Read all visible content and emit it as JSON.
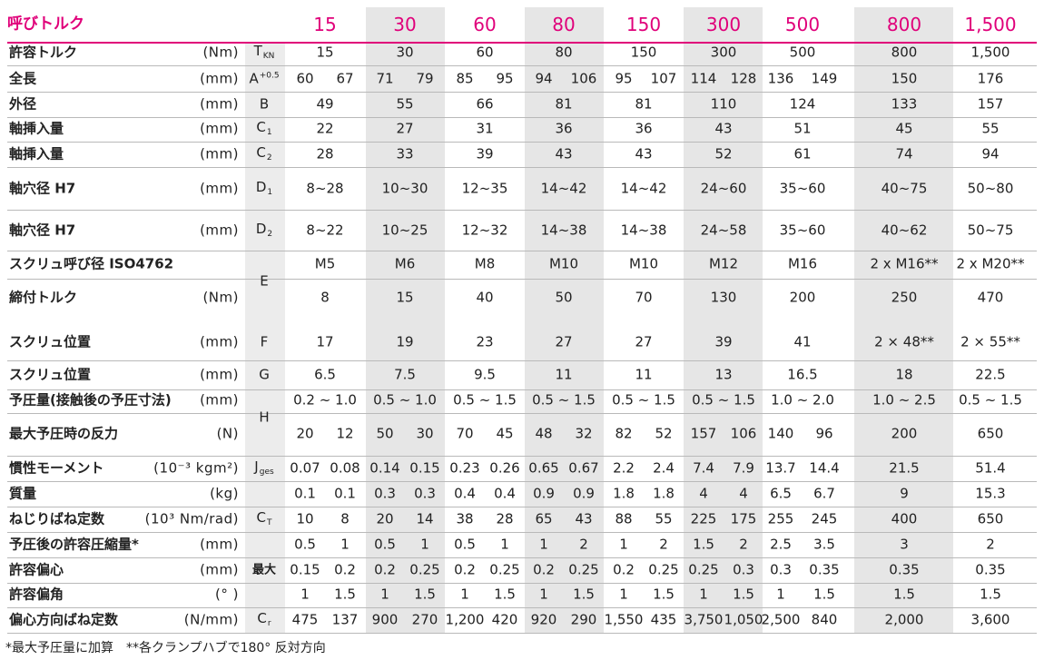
{
  "header": {
    "label": "呼びトルク",
    "sizes": [
      "15",
      "30",
      "60",
      "80",
      "150",
      "300",
      "500",
      "800",
      "1,500"
    ]
  },
  "rows": [
    {
      "label": "許容トルク",
      "unit": "(Nm)",
      "sym": "T",
      "sub": "KN",
      "values": [
        [
          "15"
        ],
        [
          "30"
        ],
        [
          "60"
        ],
        [
          "80"
        ],
        [
          "150"
        ],
        [
          "300"
        ],
        [
          "500"
        ],
        [
          "800"
        ],
        [
          "1,500"
        ]
      ]
    },
    {
      "label": "全長",
      "unit": "(mm)",
      "sym": "A",
      "sup": "+0.5",
      "values": [
        [
          "60",
          "67"
        ],
        [
          "71",
          "79"
        ],
        [
          "85",
          "95"
        ],
        [
          "94",
          "106"
        ],
        [
          "95",
          "107"
        ],
        [
          "114",
          "128"
        ],
        [
          "136",
          "149"
        ],
        [
          "150"
        ],
        [
          "176"
        ]
      ]
    },
    {
      "label": "外径",
      "unit": "(mm)",
      "sym": "B",
      "values": [
        [
          "49"
        ],
        [
          "55"
        ],
        [
          "66"
        ],
        [
          "81"
        ],
        [
          "81"
        ],
        [
          "110"
        ],
        [
          "124"
        ],
        [
          "133"
        ],
        [
          "157"
        ]
      ]
    },
    {
      "label": "軸挿入量",
      "unit": "(mm)",
      "sym": "C",
      "sub": "1",
      "values": [
        [
          "22"
        ],
        [
          "27"
        ],
        [
          "31"
        ],
        [
          "36"
        ],
        [
          "36"
        ],
        [
          "43"
        ],
        [
          "51"
        ],
        [
          "45"
        ],
        [
          "55"
        ]
      ]
    },
    {
      "label": "軸挿入量",
      "unit": "(mm)",
      "sym": "C",
      "sub": "2",
      "values": [
        [
          "28"
        ],
        [
          "33"
        ],
        [
          "39"
        ],
        [
          "43"
        ],
        [
          "43"
        ],
        [
          "52"
        ],
        [
          "61"
        ],
        [
          "74"
        ],
        [
          "94"
        ]
      ]
    },
    {
      "label": "軸穴径 H7",
      "unit": "(mm)",
      "sym": "D",
      "sub": "1",
      "values": [
        [
          "8~28"
        ],
        [
          "10~30"
        ],
        [
          "12~35"
        ],
        [
          "14~42"
        ],
        [
          "14~42"
        ],
        [
          "24~60"
        ],
        [
          "35~60"
        ],
        [
          "40~75"
        ],
        [
          "50~80"
        ]
      ]
    },
    {
      "label": "軸穴径 H7",
      "unit": "(mm)",
      "sym": "D",
      "sub": "2",
      "values": [
        [
          "8~22"
        ],
        [
          "10~25"
        ],
        [
          "12~32"
        ],
        [
          "14~38"
        ],
        [
          "14~38"
        ],
        [
          "24~58"
        ],
        [
          "35~60"
        ],
        [
          "40~62"
        ],
        [
          "50~75"
        ]
      ]
    },
    {
      "label": "スクリュ呼び径 ISO4762",
      "unit": "",
      "sym": "",
      "values": [
        [
          "M5"
        ],
        [
          "M6"
        ],
        [
          "M8"
        ],
        [
          "M10"
        ],
        [
          "M10"
        ],
        [
          "M12"
        ],
        [
          "M16"
        ],
        [
          "2 x M16**"
        ],
        [
          "2 x M20**"
        ]
      ]
    },
    {
      "label": "締付トルク",
      "unit": "(Nm)",
      "sym": "",
      "values": [
        [
          "8"
        ],
        [
          "15"
        ],
        [
          "40"
        ],
        [
          "50"
        ],
        [
          "70"
        ],
        [
          "130"
        ],
        [
          "200"
        ],
        [
          "250"
        ],
        [
          "470"
        ]
      ]
    },
    {
      "label": "スクリュ位置",
      "unit": "(mm)",
      "sym": "F",
      "values": [
        [
          "17"
        ],
        [
          "19"
        ],
        [
          "23"
        ],
        [
          "27"
        ],
        [
          "27"
        ],
        [
          "39"
        ],
        [
          "41"
        ],
        [
          "2 × 48**"
        ],
        [
          "2 × 55**"
        ]
      ]
    },
    {
      "label": "スクリュ位置",
      "unit": "(mm)",
      "sym": "G",
      "values": [
        [
          "6.5"
        ],
        [
          "7.5"
        ],
        [
          "9.5"
        ],
        [
          "11"
        ],
        [
          "11"
        ],
        [
          "13"
        ],
        [
          "16.5"
        ],
        [
          "18"
        ],
        [
          "22.5"
        ]
      ]
    },
    {
      "label": "予圧量(接触後の予圧寸法)",
      "unit": "(mm)",
      "sym": "",
      "values": [
        [
          "0.2 ~ 1.0"
        ],
        [
          "0.5 ~ 1.0"
        ],
        [
          "0.5 ~ 1.5"
        ],
        [
          "0.5 ~ 1.5"
        ],
        [
          "0.5 ~ 1.5"
        ],
        [
          "0.5 ~ 1.5"
        ],
        [
          "1.0 ~ 2.0"
        ],
        [
          "1.0 ~ 2.5"
        ],
        [
          "0.5 ~ 1.5"
        ]
      ]
    },
    {
      "label": "最大予圧時の反力",
      "unit": "(N)",
      "sym": "",
      "values": [
        [
          "20",
          "12"
        ],
        [
          "50",
          "30"
        ],
        [
          "70",
          "45"
        ],
        [
          "48",
          "32"
        ],
        [
          "82",
          "52"
        ],
        [
          "157",
          "106"
        ],
        [
          "140",
          "96"
        ],
        [
          "200"
        ],
        [
          "650"
        ]
      ]
    },
    {
      "label": "慣性モーメント",
      "unit": "(10⁻³ kgm²)",
      "sym": "J",
      "sub": "ges",
      "values": [
        [
          "0.07",
          "0.08"
        ],
        [
          "0.14",
          "0.15"
        ],
        [
          "0.23",
          "0.26"
        ],
        [
          "0.65",
          "0.67"
        ],
        [
          "2.2",
          "2.4"
        ],
        [
          "7.4",
          "7.9"
        ],
        [
          "13.7",
          "14.4"
        ],
        [
          "21.5"
        ],
        [
          "51.4"
        ]
      ]
    },
    {
      "label": "質量",
      "unit": "(kg)",
      "sym": "",
      "values": [
        [
          "0.1",
          "0.1"
        ],
        [
          "0.3",
          "0.3"
        ],
        [
          "0.4",
          "0.4"
        ],
        [
          "0.9",
          "0.9"
        ],
        [
          "1.8",
          "1.8"
        ],
        [
          "4",
          "4"
        ],
        [
          "6.5",
          "6.7"
        ],
        [
          "9"
        ],
        [
          "15.3"
        ]
      ]
    },
    {
      "label": "ねじりばね定数",
      "unit": "(10³ Nm/rad)",
      "sym": "C",
      "sub": "T",
      "values": [
        [
          "10",
          "8"
        ],
        [
          "20",
          "14"
        ],
        [
          "38",
          "28"
        ],
        [
          "65",
          "43"
        ],
        [
          "88",
          "55"
        ],
        [
          "225",
          "175"
        ],
        [
          "255",
          "245"
        ],
        [
          "400"
        ],
        [
          "650"
        ]
      ]
    },
    {
      "label": "予圧後の許容圧縮量*",
      "unit": "(mm)",
      "sym": "",
      "values": [
        [
          "0.5",
          "1"
        ],
        [
          "0.5",
          "1"
        ],
        [
          "0.5",
          "1"
        ],
        [
          "1",
          "2"
        ],
        [
          "1",
          "2"
        ],
        [
          "1.5",
          "2"
        ],
        [
          "2.5",
          "3.5"
        ],
        [
          "3"
        ],
        [
          "2"
        ]
      ]
    },
    {
      "label": "許容偏心",
      "unit": "(mm)",
      "sym": "",
      "values": [
        [
          "0.15",
          "0.2"
        ],
        [
          "0.2",
          "0.25"
        ],
        [
          "0.2",
          "0.25"
        ],
        [
          "0.2",
          "0.25"
        ],
        [
          "0.2",
          "0.25"
        ],
        [
          "0.25",
          "0.3"
        ],
        [
          "0.3",
          "0.35"
        ],
        [
          "0.35"
        ],
        [
          "0.35"
        ]
      ]
    },
    {
      "label": "許容偏角",
      "unit": "(° )",
      "sym": "",
      "values": [
        [
          "1",
          "1.5"
        ],
        [
          "1",
          "1.5"
        ],
        [
          "1",
          "1.5"
        ],
        [
          "1",
          "1.5"
        ],
        [
          "1",
          "1.5"
        ],
        [
          "1",
          "1.5"
        ],
        [
          "1",
          "1.5"
        ],
        [
          "1.5"
        ],
        [
          "1.5"
        ]
      ]
    },
    {
      "label": "偏心方向ばね定数",
      "unit": "(N/mm)",
      "sym": "C",
      "sub": "r",
      "values": [
        [
          "475",
          "137"
        ],
        [
          "900",
          "270"
        ],
        [
          "1,200",
          "420"
        ],
        [
          "920",
          "290"
        ],
        [
          "1,550",
          "435"
        ],
        [
          "3,750",
          "1,050"
        ],
        [
          "2,500",
          "840"
        ],
        [
          "2,000"
        ],
        [
          "3,600"
        ]
      ]
    }
  ],
  "merged_symbols": [
    {
      "text": "E",
      "rows": [
        7,
        8
      ]
    },
    {
      "text": "H",
      "rows": [
        11,
        12
      ]
    },
    {
      "text": "最大",
      "rows": [
        16,
        18
      ],
      "bold": true
    }
  ],
  "footnote": "*最大予圧量に加算　**各クランプハブで180° 反対方向"
}
